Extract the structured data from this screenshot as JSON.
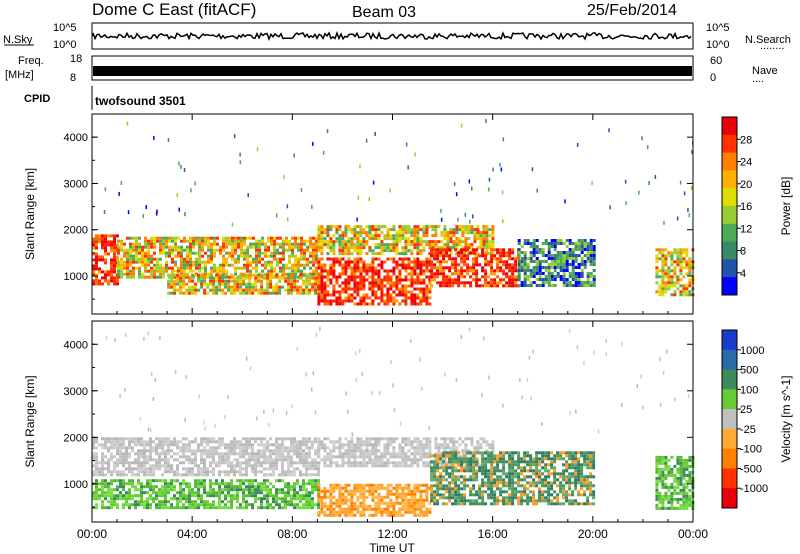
{
  "header": {
    "title": "Dome C East (fitACF)",
    "beam": "Beam 03",
    "date": "25/Feb/2014"
  },
  "strips": {
    "nsky_label": "N.Sky",
    "nsky_ticks": [
      "10^5",
      "10^0"
    ],
    "nsearch_label": "N.Search",
    "nsearch_dots": "........",
    "nsearch_ticks": [
      "10^5",
      "10^0"
    ],
    "freq_label": "Freq.",
    "freq_unit": "[MHz]",
    "freq_ticks": [
      "18",
      "8"
    ],
    "nave_label": "Nave",
    "nave_dots": "....",
    "nave_ticks": [
      "60",
      "0"
    ],
    "cpid_label": "CPID",
    "cpid_value": "twofsound 3501"
  },
  "chart_data": [
    {
      "type": "heatmap",
      "panel": "power",
      "ylabel": "Slant Range [km]",
      "xlabel": "",
      "x_ticks": [
        "00:00",
        "04:00",
        "08:00",
        "12:00",
        "16:00",
        "20:00",
        "00:00"
      ],
      "y_ticks": [
        "1000",
        "2000",
        "3000",
        "4000"
      ],
      "xlim_hours": [
        0,
        24
      ],
      "ylim_km": [
        180,
        4500
      ],
      "grid": false,
      "colorbar": {
        "label": "Power [dB]",
        "ticks": [
          "28",
          "24",
          "20",
          "16",
          "12",
          "8",
          "4"
        ],
        "colors": [
          "#e8000b",
          "#ff3300",
          "#ff7f00",
          "#ffb000",
          "#dede00",
          "#99cc33",
          "#4daa55",
          "#3a8a66",
          "#2255aa",
          "#0000ff"
        ]
      },
      "regions": [
        {
          "t0": 0.0,
          "t1": 1.0,
          "r0": 800,
          "r1": 1900,
          "level": "high"
        },
        {
          "t0": 1.0,
          "t1": 9.0,
          "r0": 1000,
          "r1": 1850,
          "level": "mid"
        },
        {
          "t0": 3.0,
          "t1": 9.0,
          "r0": 600,
          "r1": 1050,
          "level": "mid"
        },
        {
          "t0": 9.0,
          "t1": 13.5,
          "r0": 400,
          "r1": 1400,
          "level": "high"
        },
        {
          "t0": 9.0,
          "t1": 16.0,
          "r0": 1500,
          "r1": 2100,
          "level": "mid"
        },
        {
          "t0": 13.5,
          "t1": 17.0,
          "r0": 800,
          "r1": 1600,
          "level": "high"
        },
        {
          "t0": 17.0,
          "t1": 20.0,
          "r0": 800,
          "r1": 1800,
          "level": "low"
        },
        {
          "t0": 22.5,
          "t1": 24.0,
          "r0": 600,
          "r1": 1600,
          "level": "mid"
        }
      ]
    },
    {
      "type": "heatmap",
      "panel": "velocity",
      "ylabel": "Slant Range [km]",
      "xlabel": "Time UT",
      "x_ticks": [
        "00:00",
        "04:00",
        "08:00",
        "12:00",
        "16:00",
        "20:00",
        "00:00"
      ],
      "y_ticks": [
        "1000",
        "2000",
        "3000",
        "4000"
      ],
      "xlim_hours": [
        0,
        24
      ],
      "ylim_km": [
        180,
        4500
      ],
      "grid": false,
      "colorbar": {
        "label": "Velocity [m s^-1]",
        "ticks": [
          "1000",
          "500",
          "100",
          "25",
          "-25",
          "-100",
          "-500",
          "-1000"
        ],
        "colors": [
          "#1a3ccc",
          "#2a6aa8",
          "#3d8a5c",
          "#66cc33",
          "#c0c0c0",
          "#ffaa33",
          "#ff7f00",
          "#ff3300",
          "#e8000b"
        ]
      },
      "regions": [
        {
          "t0": 0.0,
          "t1": 9.0,
          "r0": 1200,
          "r1": 2000,
          "level": "grey"
        },
        {
          "t0": 0.0,
          "t1": 9.0,
          "r0": 500,
          "r1": 1100,
          "level": "green"
        },
        {
          "t0": 9.0,
          "t1": 13.5,
          "r0": 300,
          "r1": 1000,
          "level": "orange"
        },
        {
          "t0": 9.0,
          "t1": 16.0,
          "r0": 1400,
          "r1": 2000,
          "level": "grey"
        },
        {
          "t0": 13.5,
          "t1": 20.0,
          "r0": 600,
          "r1": 1700,
          "level": "darkgreen"
        },
        {
          "t0": 22.5,
          "t1": 24.0,
          "r0": 500,
          "r1": 1600,
          "level": "green"
        }
      ]
    }
  ]
}
